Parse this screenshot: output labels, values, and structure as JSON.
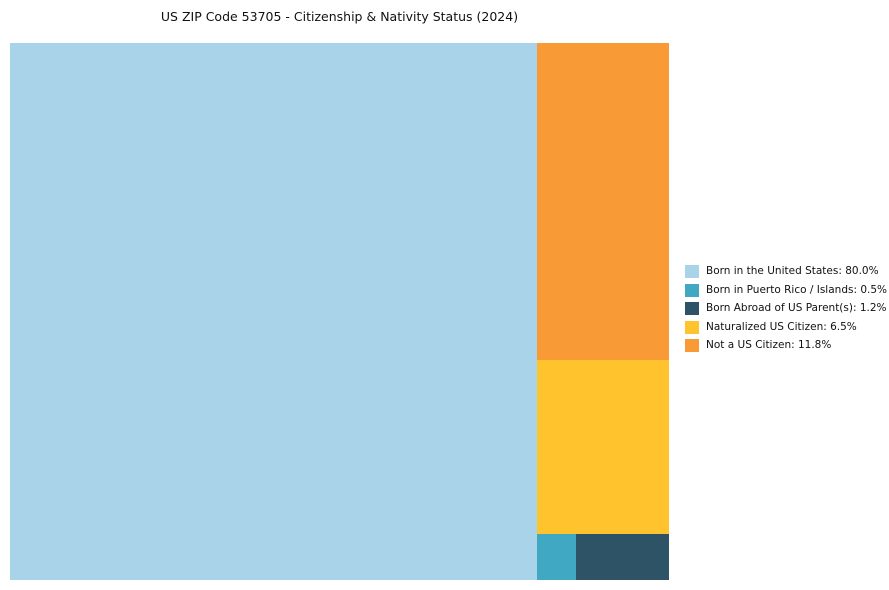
{
  "title": "US ZIP Code 53705 - Citizenship & Nativity Status (2024)",
  "chart_data": {
    "type": "treemap",
    "title": "US ZIP Code 53705 - Citizenship & Nativity Status (2024)",
    "categories": [
      "Born in the United States",
      "Born in Puerto Rico / Islands",
      "Born Abroad of US Parent(s)",
      "Naturalized US Citizen",
      "Not a US Citizen"
    ],
    "values": [
      80.0,
      0.5,
      1.2,
      6.5,
      11.8
    ],
    "unit": "%",
    "colors": [
      "#A8D3E9",
      "#40A8C2",
      "#2E5266",
      "#FEC32D",
      "#F89A35"
    ],
    "labels": [
      "Born in the United States: 80.0%",
      "Born in Puerto Rico / Islands: 0.5%",
      "Born Abroad of US Parent(s): 1.2%",
      "Naturalized US Citizen: 6.5%",
      "Not a US Citizen: 11.8%"
    ],
    "legend_position": "right",
    "background": "#ffffff"
  }
}
